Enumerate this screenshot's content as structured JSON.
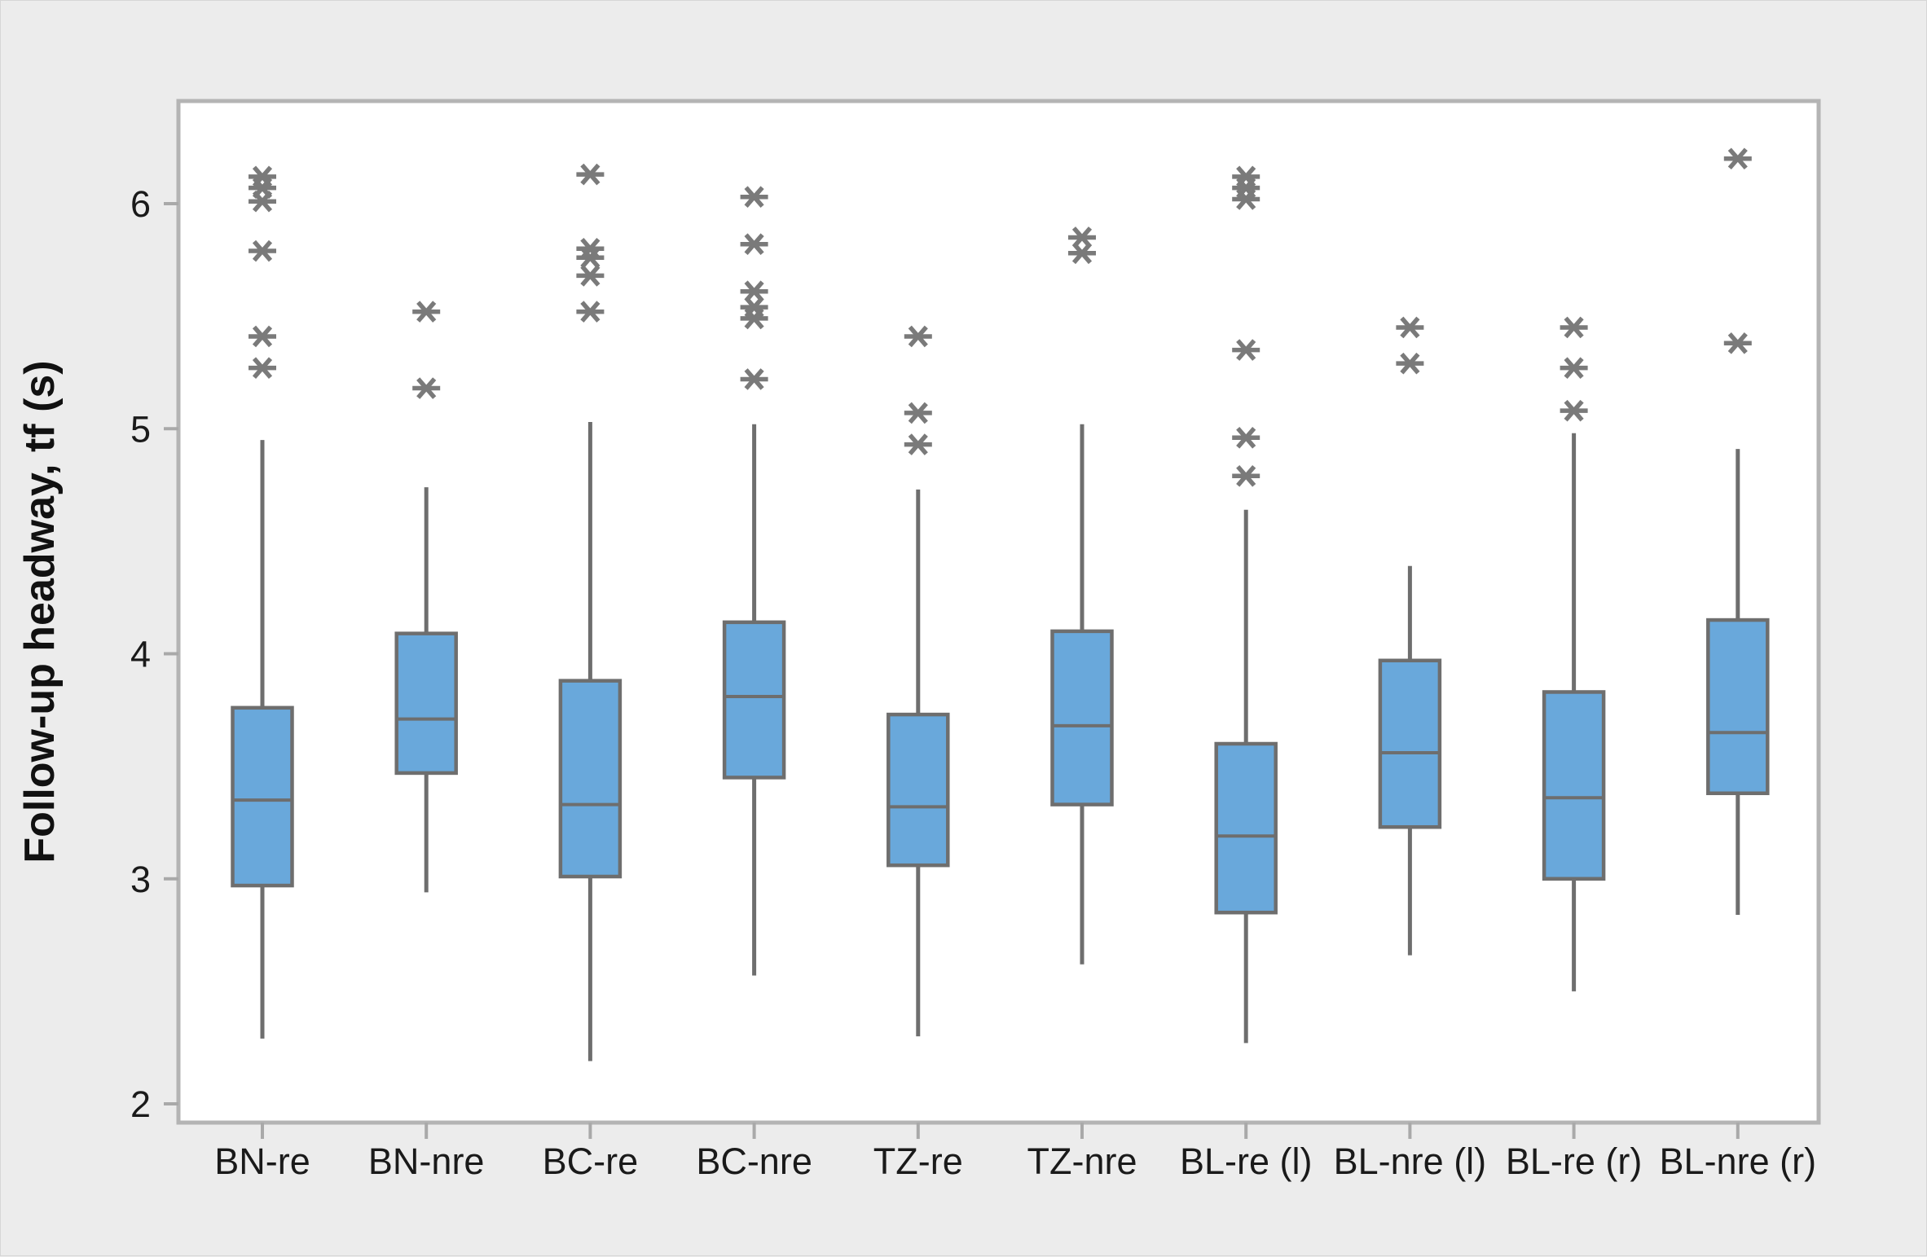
{
  "chart_data": {
    "type": "box",
    "title": "",
    "ylabel": "Follow-up headway, tf (s)",
    "xlabel": "",
    "ylim": [
      1.92,
      6.46
    ],
    "yticks": [
      2,
      3,
      4,
      5,
      6
    ],
    "grid": false,
    "legend": false,
    "categories": [
      "BN-re",
      "BN-nre",
      "BC-re",
      "BC-nre",
      "TZ-re",
      "TZ-nre",
      "BL-re (l)",
      "BL-nre (l)",
      "BL-re (r)",
      "BL-nre (r)"
    ],
    "boxes": [
      {
        "label": "BN-re",
        "whisker_low": 2.29,
        "q1": 2.97,
        "median": 3.35,
        "q3": 3.76,
        "whisker_high": 4.95,
        "outliers": [
          6.12,
          6.07,
          6.01,
          5.79,
          5.41,
          5.27
        ]
      },
      {
        "label": "BN-nre",
        "whisker_low": 2.94,
        "q1": 3.47,
        "median": 3.71,
        "q3": 4.09,
        "whisker_high": 4.74,
        "outliers": [
          5.52,
          5.18
        ]
      },
      {
        "label": "BC-re",
        "whisker_low": 2.19,
        "q1": 3.01,
        "median": 3.33,
        "q3": 3.88,
        "whisker_high": 5.03,
        "outliers": [
          6.13,
          5.8,
          5.76,
          5.68,
          5.52
        ]
      },
      {
        "label": "BC-nre",
        "whisker_low": 2.57,
        "q1": 3.45,
        "median": 3.81,
        "q3": 4.14,
        "whisker_high": 5.02,
        "outliers": [
          6.03,
          5.82,
          5.61,
          5.54,
          5.49,
          5.22
        ]
      },
      {
        "label": "TZ-re",
        "whisker_low": 2.3,
        "q1": 3.06,
        "median": 3.32,
        "q3": 3.73,
        "whisker_high": 4.73,
        "outliers": [
          5.41,
          5.07,
          4.93
        ]
      },
      {
        "label": "TZ-nre",
        "whisker_low": 2.62,
        "q1": 3.33,
        "median": 3.68,
        "q3": 4.1,
        "whisker_high": 5.02,
        "outliers": [
          5.85,
          5.78
        ]
      },
      {
        "label": "BL-re (l)",
        "whisker_low": 2.27,
        "q1": 2.85,
        "median": 3.19,
        "q3": 3.6,
        "whisker_high": 4.64,
        "outliers": [
          6.12,
          6.07,
          6.02,
          5.35,
          4.96,
          4.79
        ]
      },
      {
        "label": "BL-nre (l)",
        "whisker_low": 2.66,
        "q1": 3.23,
        "median": 3.56,
        "q3": 3.97,
        "whisker_high": 4.39,
        "outliers": [
          5.45,
          5.29
        ]
      },
      {
        "label": "BL-re (r)",
        "whisker_low": 2.5,
        "q1": 3.0,
        "median": 3.36,
        "q3": 3.83,
        "whisker_high": 4.98,
        "outliers": [
          5.45,
          5.27,
          5.08
        ]
      },
      {
        "label": "BL-nre (r)",
        "whisker_low": 2.84,
        "q1": 3.38,
        "median": 3.65,
        "q3": 4.15,
        "whisker_high": 4.91,
        "outliers": [
          6.2,
          5.38
        ]
      }
    ],
    "marker": "asterisk-6spoke",
    "colors": {
      "box_fill": "#69A8DB",
      "box_stroke": "#6E6E6E",
      "median_line": "#6E6E6E",
      "whisker": "#6E6E6E",
      "outlier": "#7A7A7A",
      "frame": "#B4B4B4",
      "tick": "#A9A9A9",
      "text": "#1A1A1A",
      "plot_bg": "#FFFFFF",
      "canvas_bg": "#ECECEC"
    }
  }
}
